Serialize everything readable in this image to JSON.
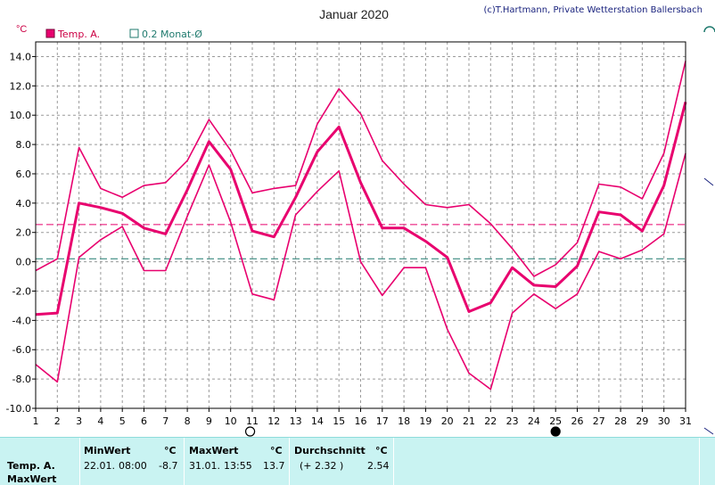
{
  "header": {
    "title": "Januar 2020",
    "copyright": "(c)T.Hartmann, Private Wetterstation Ballersbach",
    "unit": "°C",
    "legend": [
      {
        "label": "Temp. A.",
        "color": "#e8006e"
      },
      {
        "label": "0.2 Monat-Ø",
        "color": "#1f7a6e"
      }
    ]
  },
  "chart_data": {
    "type": "line",
    "title": "Januar 2020",
    "ylabel": "°C",
    "xlim": [
      1,
      31
    ],
    "ylim": [
      -10,
      15
    ],
    "yticks": [
      -10,
      -8,
      -6,
      -4,
      -2,
      0,
      2,
      4,
      6,
      8,
      10,
      12,
      14
    ],
    "ytick_labels": [
      "-10.0",
      "-8.0",
      "-6.0",
      "-4.0",
      "-2.0",
      "0.0",
      "2.0",
      "4.0",
      "6.0",
      "8.0",
      "10.0",
      "12.0",
      "14.0"
    ],
    "x": [
      1,
      2,
      3,
      4,
      5,
      6,
      7,
      8,
      9,
      10,
      11,
      12,
      13,
      14,
      15,
      16,
      17,
      18,
      19,
      20,
      21,
      22,
      23,
      24,
      25,
      26,
      27,
      28,
      29,
      30,
      31
    ],
    "x_labels": [
      "1",
      "2",
      "3",
      "4",
      "5",
      "6",
      "7",
      "8",
      "9",
      "10",
      "11",
      "12",
      "13",
      "14",
      "15",
      "16",
      "17",
      "18",
      "19",
      "20",
      "21",
      "22",
      "23",
      "24",
      "25",
      "26",
      "27",
      "28",
      "29",
      "30",
      "31"
    ],
    "grid": true,
    "series": [
      {
        "role": "max",
        "color": "#e8006e",
        "values": [
          -0.6,
          0.2,
          7.8,
          5.0,
          4.4,
          5.2,
          5.4,
          6.9,
          9.7,
          7.6,
          4.7,
          5.0,
          5.2,
          9.4,
          11.8,
          10.1,
          6.9,
          5.3,
          3.9,
          3.7,
          3.9,
          2.6,
          0.9,
          -1.0,
          -0.2,
          1.3,
          5.3,
          5.1,
          4.3,
          7.4,
          13.7
        ]
      },
      {
        "role": "avg",
        "color": "#e8006e",
        "values": [
          -3.6,
          -3.5,
          4.0,
          3.7,
          3.3,
          2.3,
          1.9,
          4.9,
          8.2,
          6.3,
          2.1,
          1.7,
          4.4,
          7.5,
          9.2,
          5.4,
          2.3,
          2.3,
          1.4,
          0.3,
          -3.4,
          -2.8,
          -0.4,
          -1.6,
          -1.7,
          -0.3,
          3.4,
          3.2,
          2.1,
          5.2,
          10.9
        ]
      },
      {
        "role": "min",
        "color": "#e8006e",
        "values": [
          -7.0,
          -8.2,
          0.3,
          1.5,
          2.4,
          -0.6,
          -0.6,
          3.1,
          6.6,
          2.7,
          -2.2,
          -2.6,
          3.2,
          4.8,
          6.2,
          0.0,
          -2.3,
          -0.4,
          -0.4,
          -4.6,
          -7.6,
          -8.7,
          -3.5,
          -2.2,
          -3.2,
          -2.2,
          0.7,
          0.2,
          0.8,
          1.9,
          7.4
        ]
      }
    ],
    "reference_lines": [
      {
        "value": 2.54,
        "color": "#e8006e"
      },
      {
        "value": 0.2,
        "color": "#1f7a6e"
      }
    ],
    "moon_markers": [
      {
        "day": 10.9,
        "phase": "full"
      },
      {
        "day": 25,
        "phase": "new"
      }
    ]
  },
  "summary": {
    "row_label": "Temp. A.",
    "row_label2": "MaxWert",
    "min_header": "MinWert",
    "max_header": "MaxWert",
    "avg_header": "Durchschnitt",
    "unit": "°C",
    "min_date": "22.01.",
    "min_time": "08:00",
    "min_value": "-8.7",
    "max_date": "31.01.",
    "max_time": "13:55",
    "max_value": "13.7",
    "avg_delta": "(+ 2.32 )",
    "avg_value": "2.54"
  }
}
